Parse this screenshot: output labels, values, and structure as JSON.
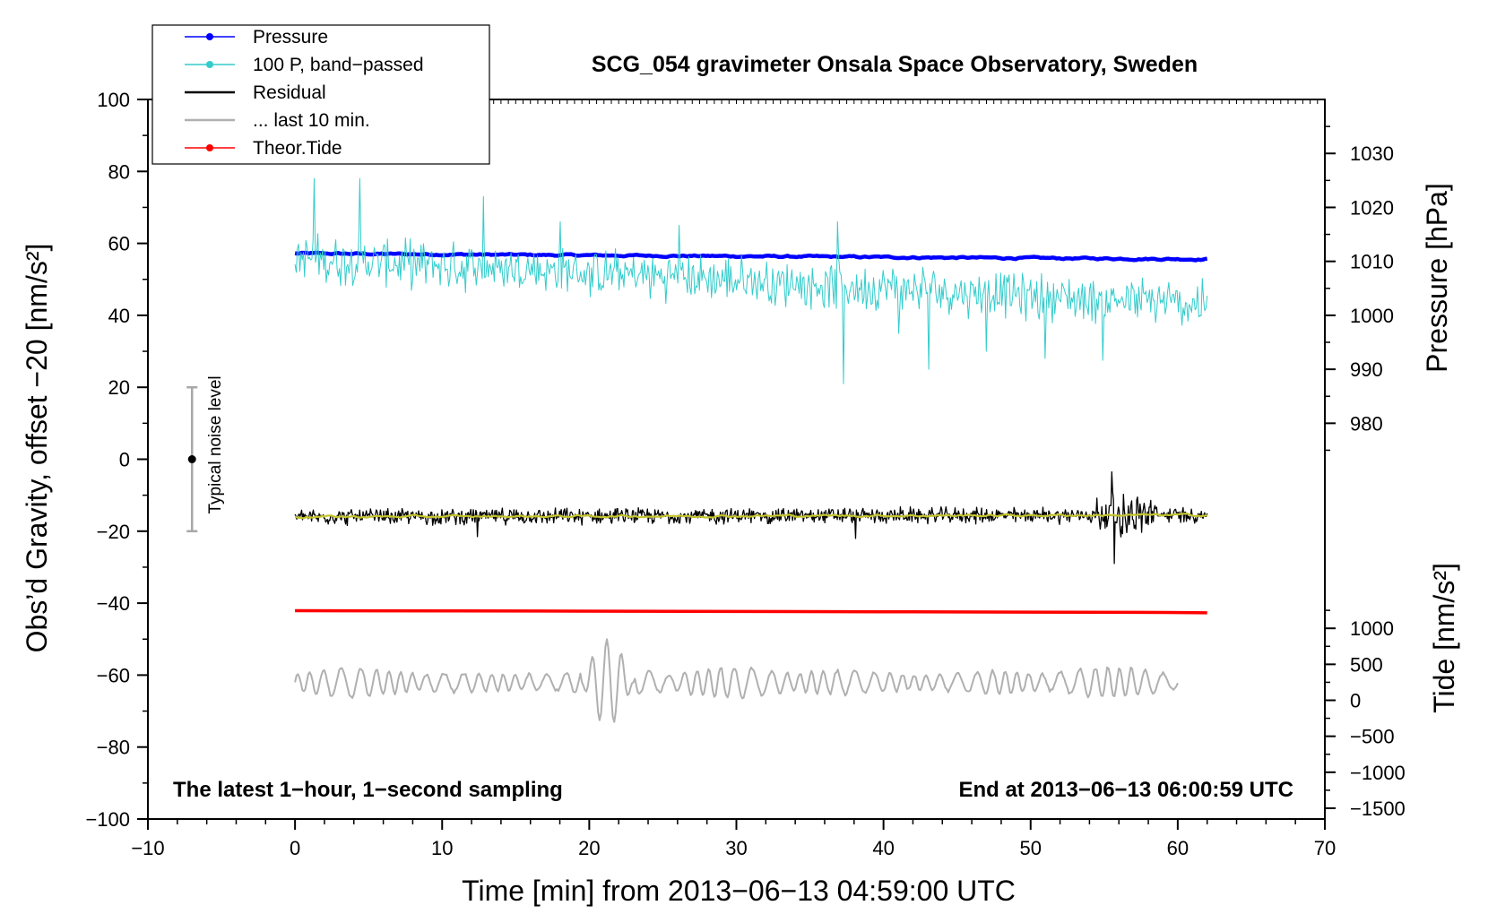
{
  "chart_data": {
    "type": "line",
    "title": "SCG_054 gravimeter Onsala Space Observatory, Sweden",
    "xlabel": "Time [min] from 2013−06−13 04:59:00 UTC",
    "ylabel": "Obs’d Gravity, offset −20 [nm/s²]",
    "xlim": [
      -10,
      70
    ],
    "ylim": [
      -100,
      100
    ],
    "xticks": [
      -10,
      0,
      10,
      20,
      30,
      40,
      50,
      60,
      70
    ],
    "xtick_labels": [
      "−10",
      "0",
      "10",
      "20",
      "30",
      "40",
      "50",
      "60",
      "70"
    ],
    "yticks": [
      -100,
      -80,
      -60,
      -40,
      -20,
      0,
      20,
      40,
      60,
      80,
      100
    ],
    "ytick_labels": [
      "−100",
      "−80",
      "−60",
      "−40",
      "−20",
      "0",
      "20",
      "40",
      "60",
      "80",
      "100"
    ],
    "right_axes": [
      {
        "name": "pressure",
        "label": "Pressure [hPa]",
        "ticks": [
          980,
          990,
          1000,
          1010,
          1020,
          1030
        ],
        "tick_labels": [
          "980",
          "990",
          "1000",
          "1010",
          "1020",
          "1030"
        ],
        "left_scale_ref": {
          "value": 1000,
          "at_left_y": 40,
          "units_per_left_unit": 0.6667
        }
      },
      {
        "name": "tide",
        "label": "Tide [nm/s²]",
        "ticks": [
          -1500,
          -1000,
          -500,
          0,
          500,
          1000
        ],
        "tick_labels": [
          "−1500",
          "−1000",
          "−500",
          "0",
          "500",
          "1000"
        ],
        "left_scale_ref": {
          "value": 0,
          "at_left_y": -67,
          "units_per_left_unit": 50
        }
      }
    ],
    "legend": {
      "placement": "top-left",
      "entries": [
        {
          "label": "Pressure",
          "color": "#0000ff",
          "marker": true
        },
        {
          "label": "100 P, band−passed",
          "color": "#33cccc",
          "marker": true
        },
        {
          "label": "Residual",
          "color": "#000000",
          "marker": false
        },
        {
          "label": "... last 10 min.",
          "color": "#b0b0b0",
          "marker": false
        },
        {
          "label": "Theor.Tide",
          "color": "#ff0000",
          "marker": true
        }
      ]
    },
    "series": [
      {
        "name": "Pressure",
        "color": "#0000ff",
        "kind": "smooth",
        "x_range": [
          0,
          62
        ],
        "start": 57.2,
        "end": 55.6,
        "noise": 0.35
      },
      {
        "name": "100 P, band−passed",
        "color": "#33cccc",
        "kind": "noise",
        "x_range": [
          0,
          62
        ],
        "center_start": 56,
        "center_end": 43,
        "amp": 6.5,
        "spikes": [
          [
            1.3,
            78
          ],
          [
            4.4,
            78
          ],
          [
            12.8,
            73
          ],
          [
            18.0,
            66
          ],
          [
            26.1,
            65
          ],
          [
            34.0,
            47
          ],
          [
            36.9,
            66
          ],
          [
            37.3,
            21
          ],
          [
            41.0,
            35
          ],
          [
            43.1,
            25
          ],
          [
            47.0,
            30
          ],
          [
            51.0,
            28
          ],
          [
            54.9,
            27.5
          ],
          [
            58.5,
            38
          ]
        ]
      },
      {
        "name": "Residual",
        "color": "#000000",
        "kind": "noise",
        "x_range": [
          0,
          62
        ],
        "center_start": -16,
        "center_end": -15.5,
        "amp": 2.2,
        "burst": {
          "x_range": [
            54.5,
            58.5
          ],
          "amp": 6
        },
        "spikes": [
          [
            55.5,
            -3.5
          ],
          [
            55.7,
            -29
          ],
          [
            38.1,
            -22
          ],
          [
            12.4,
            -21.5
          ]
        ]
      },
      {
        "name": "Residual (smoothed)",
        "color": "#c4c42e",
        "kind": "smooth",
        "x_range": [
          0,
          62
        ],
        "start": -16,
        "end": -15.5,
        "noise": 0.45
      },
      {
        "name": "Theor.Tide",
        "color": "#ff0000",
        "kind": "steps",
        "points": [
          [
            0,
            -42.1
          ],
          [
            16.5,
            -42.2
          ],
          [
            40.0,
            -42.4
          ],
          [
            59.3,
            -42.6
          ],
          [
            62,
            -42.7
          ]
        ]
      },
      {
        "name": "... last 10 min.",
        "color": "#b0b0b0",
        "kind": "wave",
        "x_range": [
          0,
          60
        ],
        "center": -62,
        "amp": 3.2,
        "burst": {
          "x_range": [
            19.5,
            23
          ],
          "amp": 12,
          "peak": -49.5,
          "trough": -75.5
        }
      }
    ],
    "annotations": {
      "bottom_left": "The latest 1−hour, 1−second sampling",
      "bottom_right": "End at 2013−06−13 06:00:59 UTC",
      "noise_label": "Typical noise level",
      "noise_bar": {
        "x": -7,
        "y": 0,
        "ymin": -20,
        "ymax": 20
      }
    }
  }
}
